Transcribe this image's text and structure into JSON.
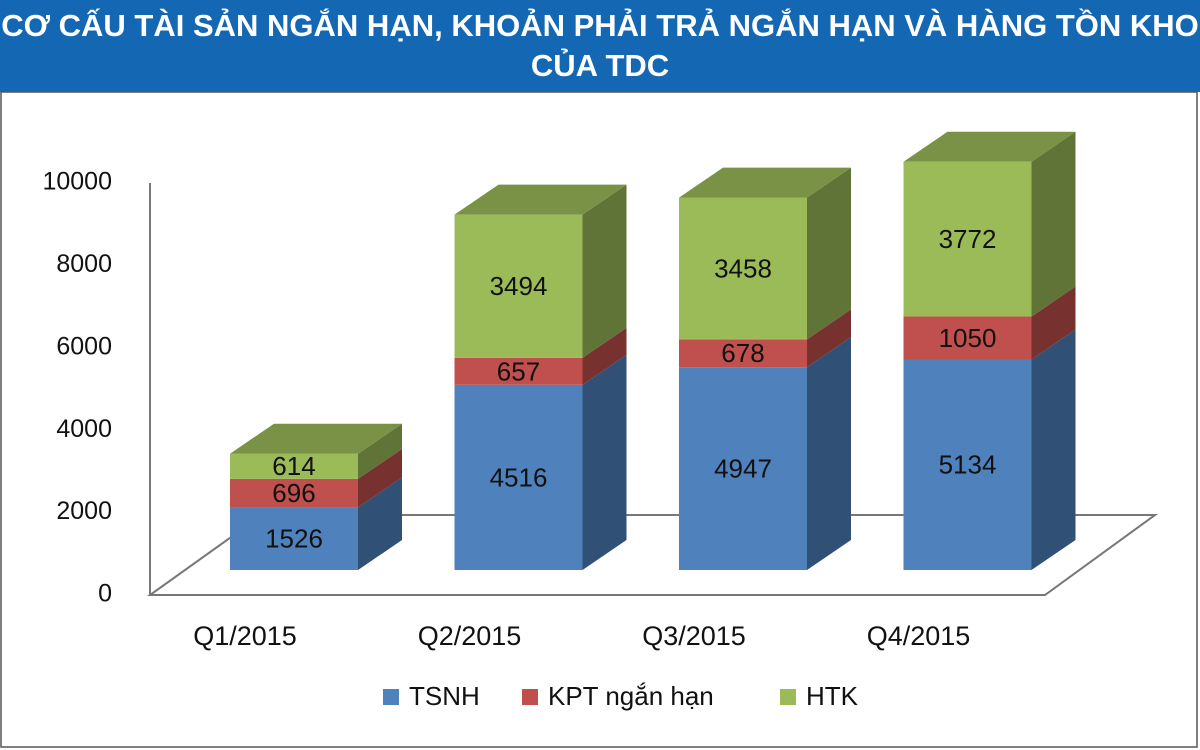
{
  "chart_data": {
    "type": "bar3d-stacked",
    "title": "CƠ CẤU TÀI SẢN NGẮN HẠN, KHOẢN PHẢI TRẢ NGẮN HẠN VÀ HÀNG TỒN KHO CỦA TDC",
    "categories": [
      "Q1/2015",
      "Q2/2015",
      "Q3/2015",
      "Q4/2015"
    ],
    "series": [
      {
        "name": "TSNH",
        "color": "#4f81bd",
        "values": [
          1526,
          4516,
          4947,
          5134
        ]
      },
      {
        "name": "KPT ngắn hạn",
        "color": "#c0504d",
        "values": [
          696,
          657,
          678,
          1050
        ]
      },
      {
        "name": "HTK",
        "color": "#9bbb59",
        "values": [
          614,
          3494,
          3458,
          3772
        ]
      }
    ],
    "ylim": [
      0,
      10000
    ],
    "yticks": [
      0,
      2000,
      4000,
      6000,
      8000,
      10000
    ],
    "grid": false
  }
}
